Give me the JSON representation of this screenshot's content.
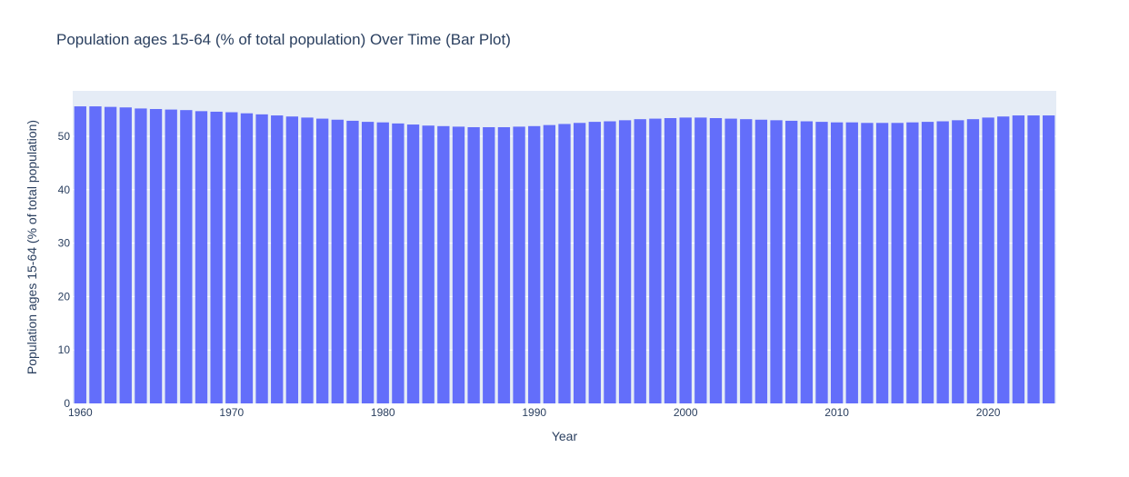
{
  "chart_data": {
    "type": "bar",
    "title": "Population ages 15-64 (% of total population) Over Time (Bar Plot)",
    "xlabel": "Year",
    "ylabel": "Population ages 15-64 (% of total population)",
    "xlim": [
      1959.5,
      2024.5
    ],
    "ylim": [
      0,
      58.5
    ],
    "x_ticks": [
      1960,
      1970,
      1980,
      1990,
      2000,
      2010,
      2020
    ],
    "y_ticks": [
      0,
      10,
      20,
      30,
      40,
      50
    ],
    "grid": true,
    "bar_color": "#636efa",
    "plot_background": "#e5ecf6",
    "x": [
      1960,
      1961,
      1962,
      1963,
      1964,
      1965,
      1966,
      1967,
      1968,
      1969,
      1970,
      1971,
      1972,
      1973,
      1974,
      1975,
      1976,
      1977,
      1978,
      1979,
      1980,
      1981,
      1982,
      1983,
      1984,
      1985,
      1986,
      1987,
      1988,
      1989,
      1990,
      1991,
      1992,
      1993,
      1994,
      1995,
      1996,
      1997,
      1998,
      1999,
      2000,
      2001,
      2002,
      2003,
      2004,
      2005,
      2006,
      2007,
      2008,
      2009,
      2010,
      2011,
      2012,
      2013,
      2014,
      2015,
      2016,
      2017,
      2018,
      2019,
      2020,
      2021,
      2022,
      2023,
      2024
    ],
    "values": [
      55.6,
      55.6,
      55.5,
      55.4,
      55.2,
      55.1,
      55.0,
      54.9,
      54.7,
      54.6,
      54.5,
      54.3,
      54.1,
      53.9,
      53.7,
      53.5,
      53.3,
      53.1,
      52.9,
      52.7,
      52.6,
      52.4,
      52.2,
      52.0,
      51.9,
      51.8,
      51.7,
      51.7,
      51.7,
      51.8,
      51.9,
      52.1,
      52.3,
      52.5,
      52.7,
      52.8,
      53.0,
      53.2,
      53.3,
      53.4,
      53.5,
      53.5,
      53.4,
      53.3,
      53.2,
      53.1,
      53.0,
      52.9,
      52.8,
      52.7,
      52.6,
      52.6,
      52.5,
      52.5,
      52.5,
      52.6,
      52.7,
      52.8,
      53.0,
      53.2,
      53.5,
      53.7,
      53.9,
      53.9,
      53.9
    ]
  }
}
